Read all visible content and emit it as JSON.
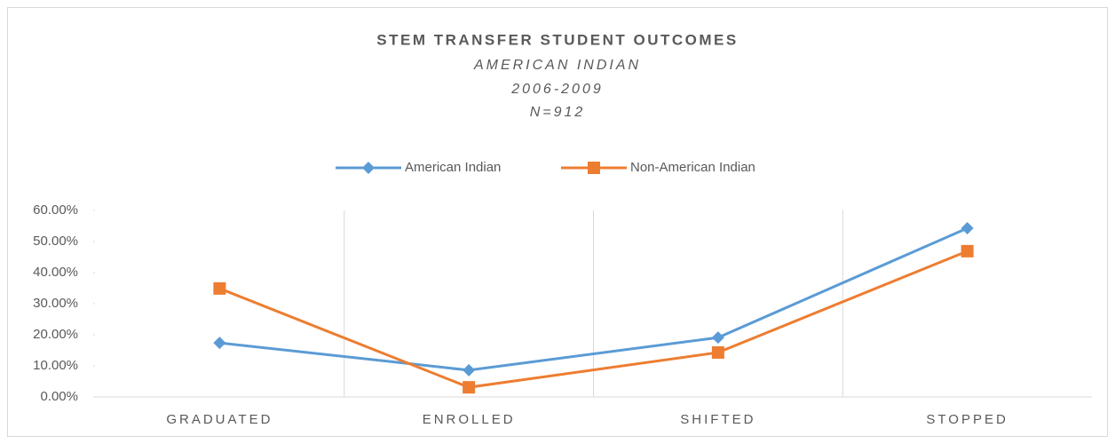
{
  "chart_data": {
    "type": "line",
    "title": "STEM TRANSFER STUDENT OUTCOMES",
    "subtitle": [
      "AMERICAN INDIAN",
      "2006-2009",
      "N=912"
    ],
    "categories": [
      "GRADUATED",
      "ENROLLED",
      "SHIFTED",
      "STOPPED"
    ],
    "series": [
      {
        "name": "American Indian",
        "color": "#5b9bd5",
        "marker": "diamond",
        "values": [
          17.4,
          8.6,
          19.1,
          54.3
        ]
      },
      {
        "name": "Non-American Indian",
        "color": "#ed7d31",
        "marker": "square",
        "values": [
          34.9,
          3.1,
          14.3,
          46.9
        ]
      }
    ],
    "ylim": [
      0,
      60
    ],
    "yticks": [
      {
        "value": 0,
        "label": "0.00%"
      },
      {
        "value": 10,
        "label": "10.00%"
      },
      {
        "value": 20,
        "label": "20.00%"
      },
      {
        "value": 30,
        "label": "30.00%"
      },
      {
        "value": 40,
        "label": "40.00%"
      },
      {
        "value": 50,
        "label": "50.00%"
      },
      {
        "value": 60,
        "label": "60.00%"
      }
    ],
    "legend": "top"
  }
}
